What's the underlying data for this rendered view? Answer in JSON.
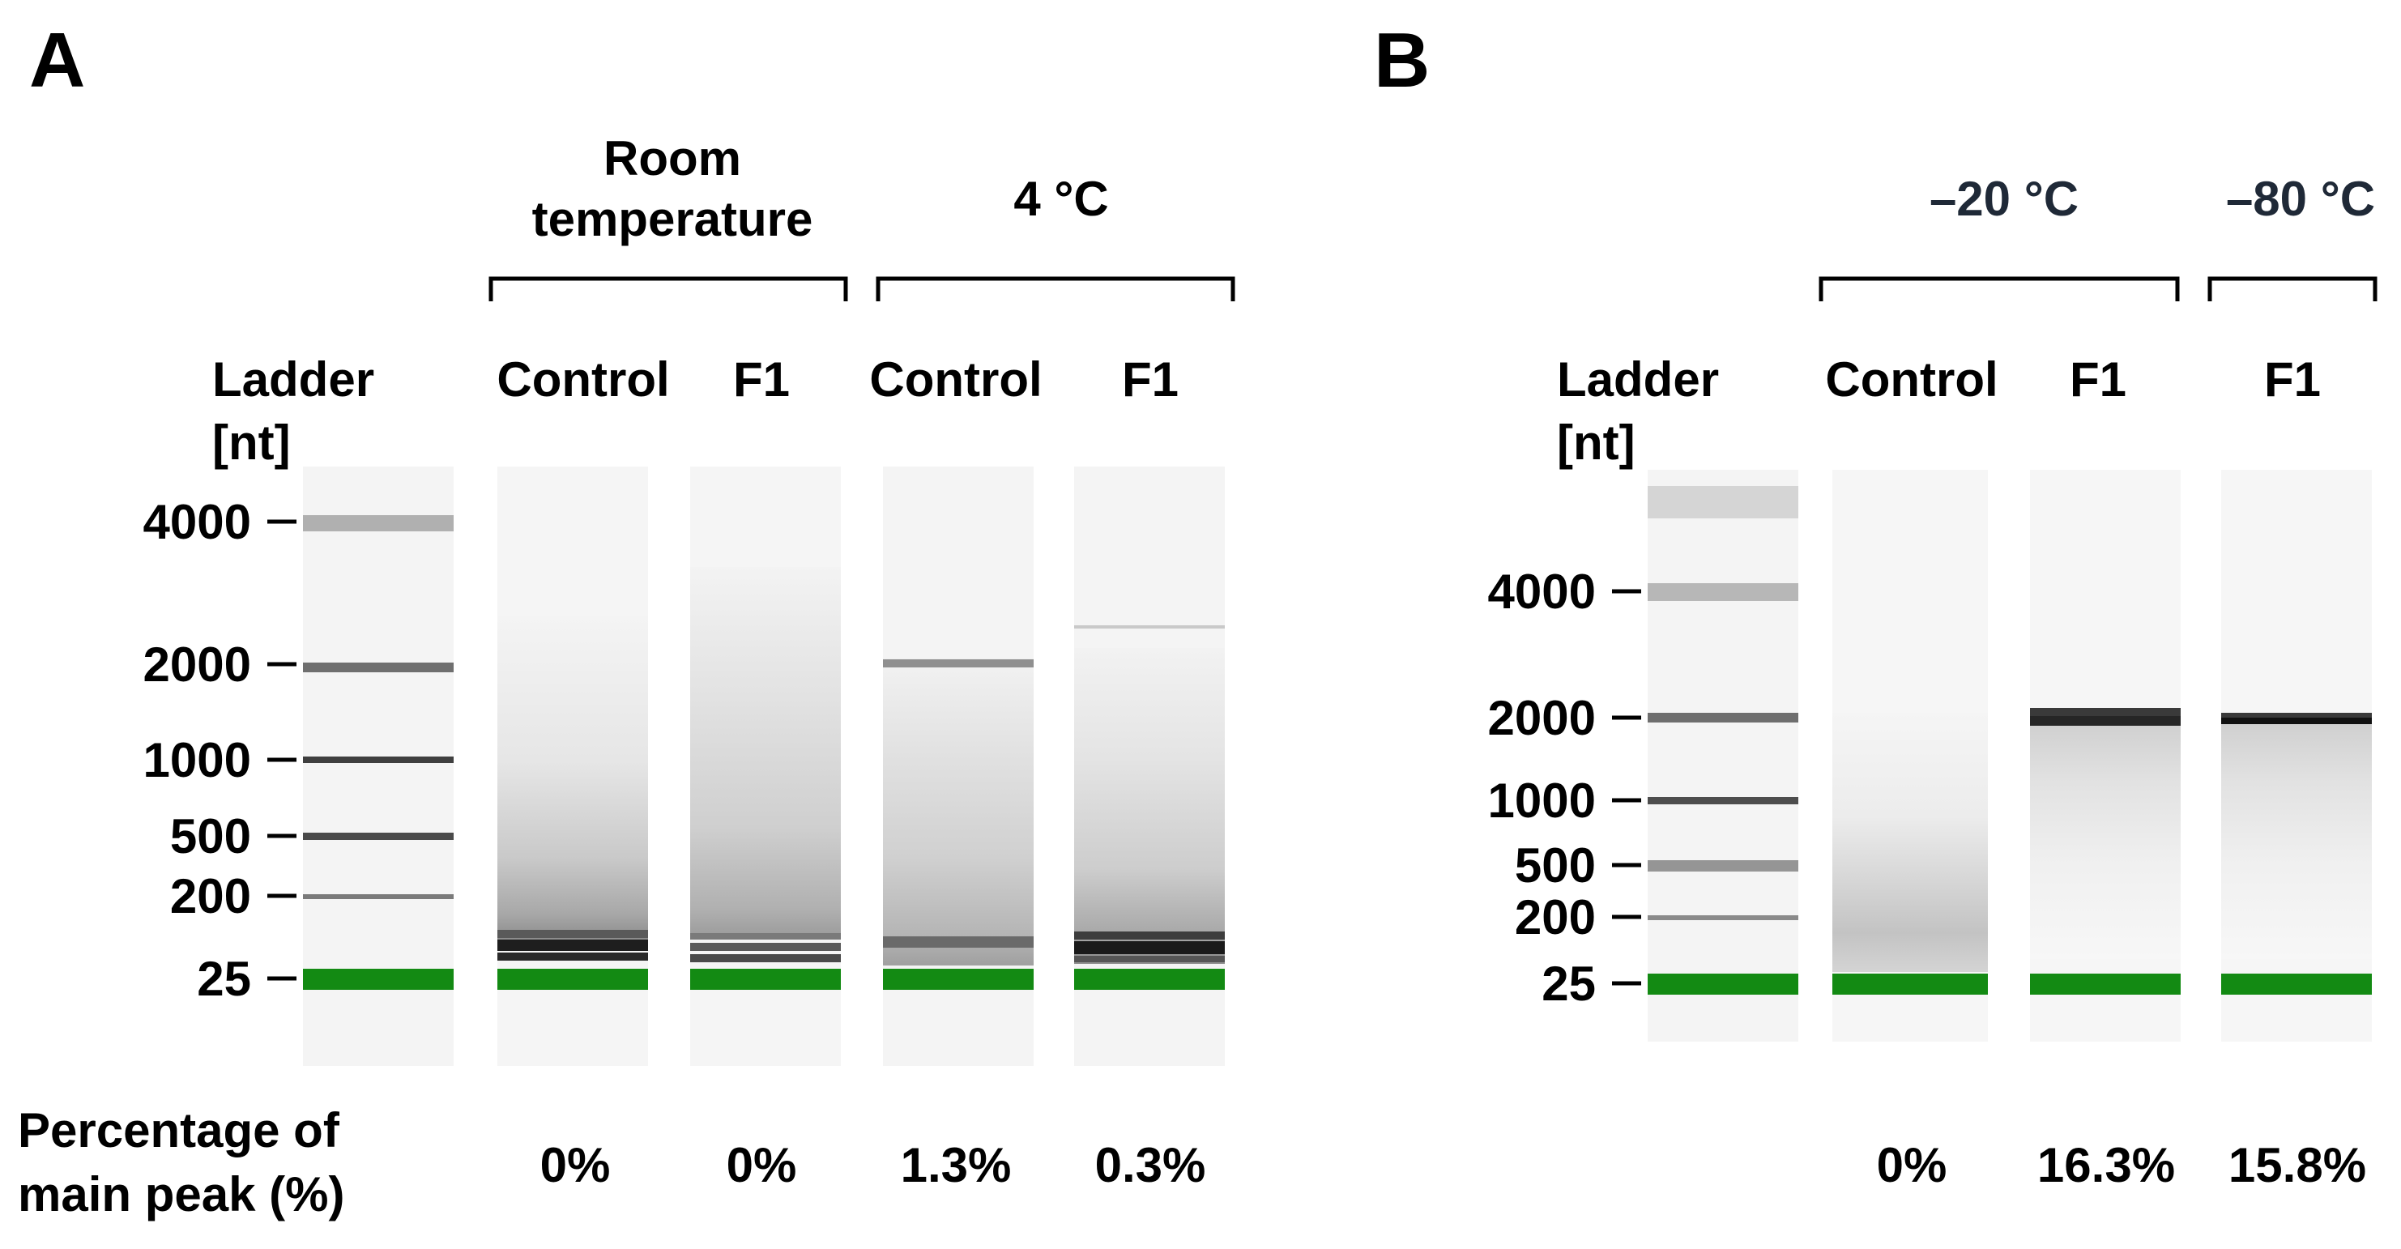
{
  "panels": [
    {
      "id": "A",
      "letter": "A",
      "ladder_title": [
        "Ladder",
        "[nt]"
      ],
      "size_markers": [
        "4000",
        "2000",
        "1000",
        "500",
        "200",
        "25"
      ],
      "conditions": [
        {
          "label": [
            "Room",
            "temperature"
          ],
          "lanes": [
            "Control",
            "F1"
          ]
        },
        {
          "label": [
            "4 °C"
          ],
          "lanes": [
            "Control",
            "F1"
          ]
        }
      ],
      "percentage_title": [
        "Percentage of",
        "main peak (%)"
      ],
      "percentages": [
        "0%",
        "0%",
        "1.3%",
        "0.3%"
      ]
    },
    {
      "id": "B",
      "letter": "B",
      "ladder_title": [
        "Ladder",
        "[nt]"
      ],
      "size_markers": [
        "4000",
        "2000",
        "1000",
        "500",
        "200",
        "25"
      ],
      "conditions": [
        {
          "label": [
            "–20 °C"
          ],
          "lanes": [
            "Control",
            "F1"
          ]
        },
        {
          "label": [
            "–80 °C"
          ],
          "lanes": [
            "F1"
          ]
        }
      ],
      "percentages": [
        "0%",
        "16.3%",
        "15.8%"
      ]
    }
  ],
  "colors": {
    "marker_band": "#138a13",
    "condition_label_B": "#1f2937"
  }
}
